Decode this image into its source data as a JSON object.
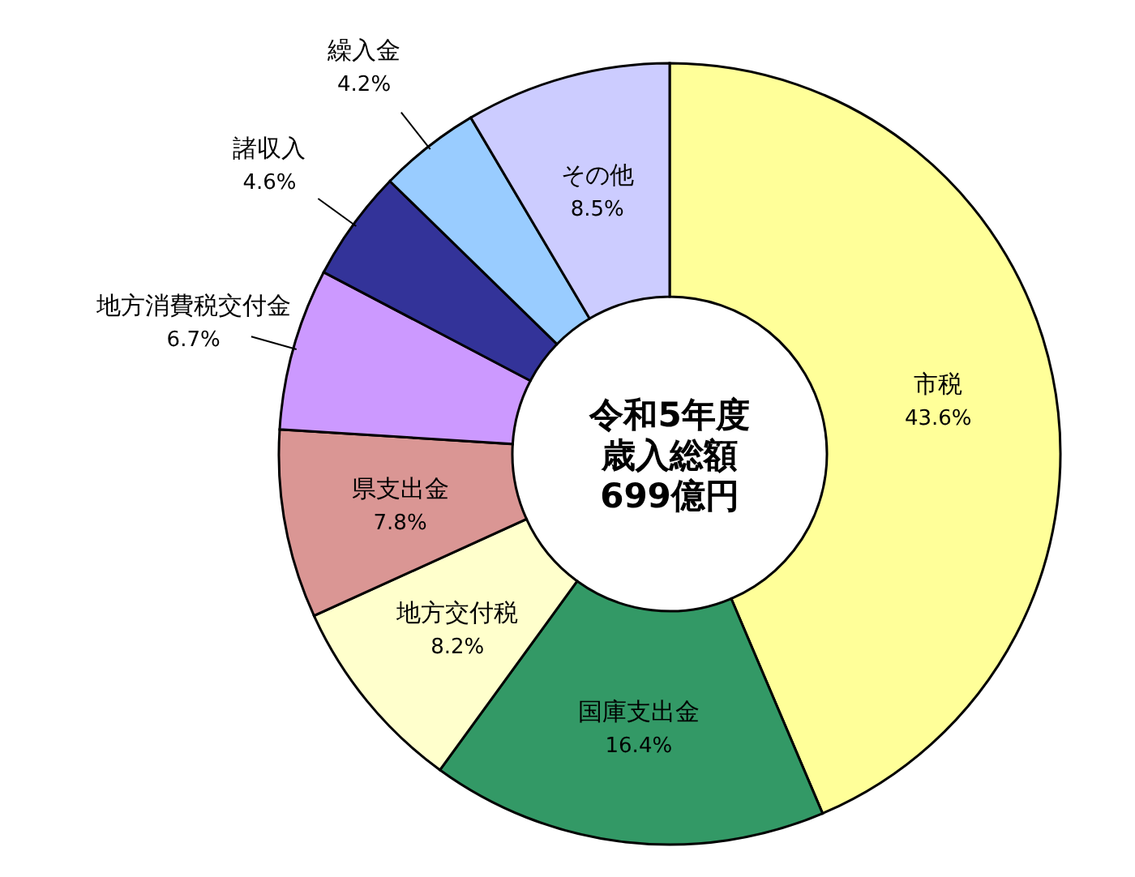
{
  "chart_data": {
    "type": "donut",
    "annotations": [
      "令和5年度",
      "歳入総額",
      "699億円"
    ],
    "categories": [
      "市税",
      "国庫支出金",
      "地方交付税",
      "県支出金",
      "地方消費税交付金",
      "諸収入",
      "繰入金",
      "その他"
    ],
    "values": [
      43.6,
      16.4,
      8.2,
      7.8,
      6.7,
      4.6,
      4.2,
      8.5
    ],
    "value_labels": [
      "43.6%",
      "16.4%",
      "8.2%",
      "7.8%",
      "6.7%",
      "4.6%",
      "4.2%",
      "8.5%"
    ],
    "colors": [
      "#ffff99",
      "#339966",
      "#ffffcc",
      "#da9694",
      "#cc99ff",
      "#333399",
      "#99ccff",
      "#ccccff"
    ]
  }
}
